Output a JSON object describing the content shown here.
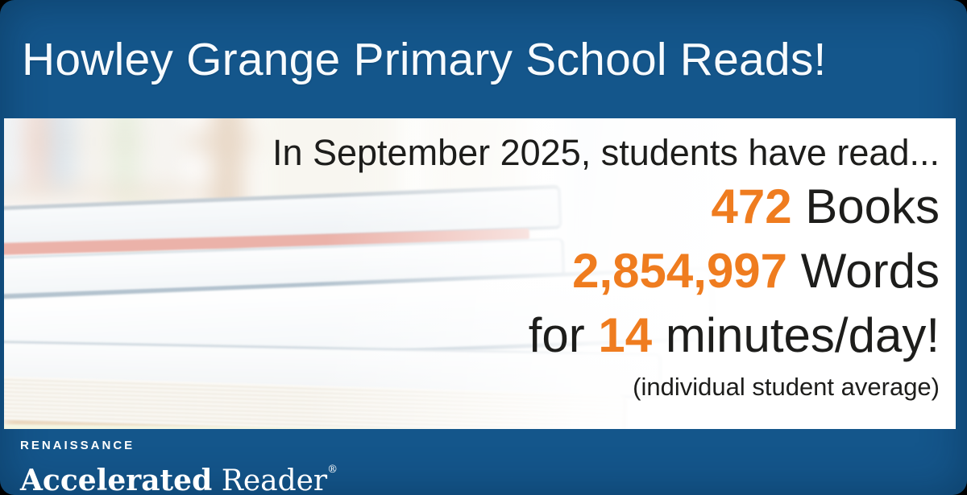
{
  "header": {
    "title": "Howley Grange Primary School Reads!"
  },
  "main": {
    "intro": "In September 2025, students have read...",
    "stats": [
      {
        "prefix": "",
        "value": "472",
        "suffix": " Books"
      },
      {
        "prefix": "",
        "value": "2,854,997",
        "suffix": " Words"
      },
      {
        "prefix": "for ",
        "value": "14",
        "suffix": " minutes/day!"
      }
    ],
    "footnote": "(individual student average)"
  },
  "footer": {
    "brand": "RENAISSANCE",
    "product_bold": "Accelerated",
    "product_regular": " Reader",
    "registered": "®"
  },
  "photo": {
    "alt": "stack-of-books-photo"
  },
  "colors": {
    "frame_blue": "#14568b",
    "accent_orange": "#ef7c1f",
    "text_dark": "#1d1d1b",
    "white": "#ffffff"
  }
}
